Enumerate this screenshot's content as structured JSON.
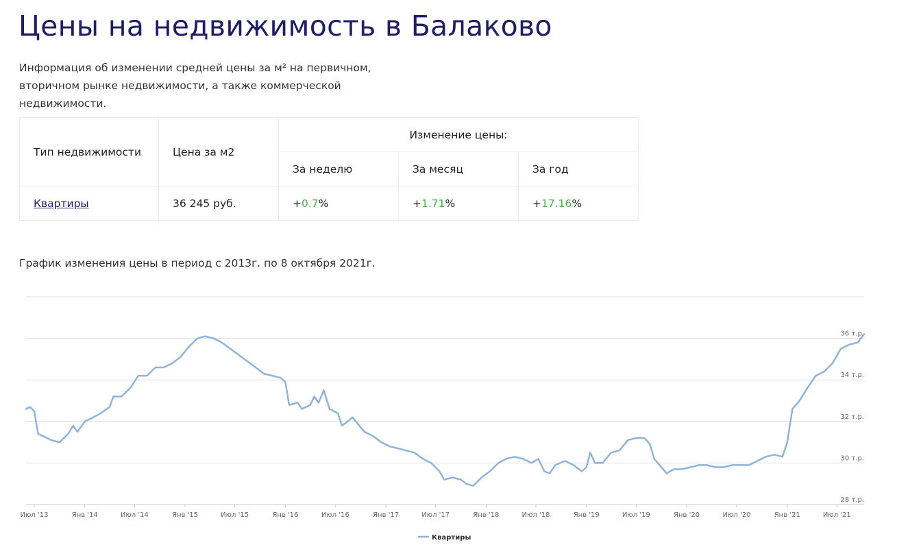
{
  "page": {
    "title": "Цены на недвижимость в Балаково",
    "intro": "Информация об изменении средней цены за м² на первичном, вторичном рынке недвижимости, а также коммерческой недвижимости.",
    "chart_caption": "График изменения цены в период с 2013г. по 8 октября 2021г."
  },
  "table": {
    "col_type": "Тип недвижимости",
    "col_price": "Цена за м2",
    "col_change": "Изменение цены:",
    "col_week": "За неделю",
    "col_month": "За месяц",
    "col_year": "За год",
    "rows": [
      {
        "type": "Квартиры",
        "price": "36 245 руб.",
        "week_sign": "+",
        "week_value": "0.7",
        "week_pct": "%",
        "month_sign": "+",
        "month_value": "1.71",
        "month_pct": "%",
        "year_sign": "+",
        "year_value": "17.16",
        "year_pct": "%"
      }
    ]
  },
  "colors": {
    "title": "#1f1d63",
    "positive": "#4cae4c",
    "series": "#8fb3d9",
    "grid": "#e0e0e0"
  },
  "chart_data": {
    "type": "line",
    "x_tick_labels": [
      "Июл '13",
      "Янв '14",
      "Июл '14",
      "Янв '15",
      "Июл '15",
      "Янв '16",
      "Июл '16",
      "Янв '17",
      "Июл '17",
      "Янв '18",
      "Июл '18",
      "Янв '19",
      "Июл '19",
      "Янв '20",
      "Июл '20",
      "Янв '21",
      "Июл '21"
    ],
    "y_ticks": [
      28,
      30,
      32,
      34,
      36
    ],
    "y_tick_labels": [
      "28 т.р.",
      "30 т.р.",
      "32 т.р.",
      "34 т.р.",
      "36 т.р."
    ],
    "ylim": [
      28,
      38
    ],
    "grid": true,
    "legend_position": "bottom-center",
    "series": [
      {
        "name": "Квартиры",
        "points": [
          [
            "2013-06-01",
            32.6
          ],
          [
            "2013-06-15",
            32.7
          ],
          [
            "2013-07-01",
            32.5
          ],
          [
            "2013-07-15",
            31.4
          ],
          [
            "2013-08-01",
            31.3
          ],
          [
            "2013-09-01",
            31.1
          ],
          [
            "2013-10-01",
            31.0
          ],
          [
            "2013-11-01",
            31.4
          ],
          [
            "2013-11-20",
            31.8
          ],
          [
            "2013-12-05",
            31.5
          ],
          [
            "2014-01-01",
            32.0
          ],
          [
            "2014-02-01",
            32.2
          ],
          [
            "2014-03-01",
            32.4
          ],
          [
            "2014-04-01",
            32.7
          ],
          [
            "2014-04-15",
            33.2
          ],
          [
            "2014-05-15",
            33.2
          ],
          [
            "2014-06-15",
            33.6
          ],
          [
            "2014-07-15",
            34.2
          ],
          [
            "2014-08-15",
            34.2
          ],
          [
            "2014-09-15",
            34.6
          ],
          [
            "2014-10-15",
            34.6
          ],
          [
            "2014-11-15",
            34.8
          ],
          [
            "2014-12-15",
            35.1
          ],
          [
            "2015-01-15",
            35.6
          ],
          [
            "2015-02-15",
            36.0
          ],
          [
            "2015-03-15",
            36.1
          ],
          [
            "2015-04-15",
            36.0
          ],
          [
            "2015-05-15",
            35.8
          ],
          [
            "2015-06-15",
            35.5
          ],
          [
            "2015-07-15",
            35.2
          ],
          [
            "2015-08-15",
            34.9
          ],
          [
            "2015-09-15",
            34.6
          ],
          [
            "2015-10-15",
            34.3
          ],
          [
            "2015-11-15",
            34.2
          ],
          [
            "2015-12-15",
            34.1
          ],
          [
            "2016-01-01",
            33.9
          ],
          [
            "2016-01-15",
            32.8
          ],
          [
            "2016-02-15",
            32.9
          ],
          [
            "2016-03-01",
            32.6
          ],
          [
            "2016-04-01",
            32.8
          ],
          [
            "2016-04-15",
            33.2
          ],
          [
            "2016-05-01",
            32.9
          ],
          [
            "2016-05-20",
            33.5
          ],
          [
            "2016-06-10",
            32.6
          ],
          [
            "2016-07-10",
            32.4
          ],
          [
            "2016-07-25",
            31.8
          ],
          [
            "2016-08-15",
            32.0
          ],
          [
            "2016-09-01",
            32.2
          ],
          [
            "2016-09-20",
            31.9
          ],
          [
            "2016-10-15",
            31.5
          ],
          [
            "2016-11-15",
            31.3
          ],
          [
            "2016-12-15",
            31.0
          ],
          [
            "2017-01-15",
            30.8
          ],
          [
            "2017-02-15",
            30.7
          ],
          [
            "2017-03-15",
            30.6
          ],
          [
            "2017-04-15",
            30.5
          ],
          [
            "2017-05-15",
            30.2
          ],
          [
            "2017-06-15",
            30.0
          ],
          [
            "2017-07-15",
            29.6
          ],
          [
            "2017-08-01",
            29.2
          ],
          [
            "2017-09-01",
            29.3
          ],
          [
            "2017-10-01",
            29.2
          ],
          [
            "2017-10-20",
            29.0
          ],
          [
            "2017-11-15",
            28.9
          ],
          [
            "2017-12-15",
            29.3
          ],
          [
            "2018-01-15",
            29.6
          ],
          [
            "2018-02-15",
            30.0
          ],
          [
            "2018-03-15",
            30.2
          ],
          [
            "2018-04-15",
            30.3
          ],
          [
            "2018-05-15",
            30.2
          ],
          [
            "2018-06-15",
            30.0
          ],
          [
            "2018-07-10",
            30.2
          ],
          [
            "2018-08-01",
            29.6
          ],
          [
            "2018-08-20",
            29.5
          ],
          [
            "2018-09-10",
            29.9
          ],
          [
            "2018-10-15",
            30.1
          ],
          [
            "2018-11-15",
            29.9
          ],
          [
            "2018-12-15",
            29.6
          ],
          [
            "2019-01-01",
            29.8
          ],
          [
            "2019-01-15",
            30.5
          ],
          [
            "2019-02-01",
            30.0
          ],
          [
            "2019-03-01",
            30.0
          ],
          [
            "2019-04-01",
            30.5
          ],
          [
            "2019-05-01",
            30.6
          ],
          [
            "2019-06-01",
            31.1
          ],
          [
            "2019-07-01",
            31.2
          ],
          [
            "2019-08-01",
            31.2
          ],
          [
            "2019-08-20",
            30.9
          ],
          [
            "2019-09-05",
            30.2
          ],
          [
            "2019-10-01",
            29.8
          ],
          [
            "2019-10-20",
            29.5
          ],
          [
            "2019-11-15",
            29.7
          ],
          [
            "2019-12-15",
            29.7
          ],
          [
            "2020-01-15",
            29.8
          ],
          [
            "2020-02-15",
            29.9
          ],
          [
            "2020-03-15",
            29.9
          ],
          [
            "2020-04-15",
            29.8
          ],
          [
            "2020-05-15",
            29.8
          ],
          [
            "2020-06-15",
            29.9
          ],
          [
            "2020-07-15",
            29.9
          ],
          [
            "2020-08-15",
            29.9
          ],
          [
            "2020-09-15",
            30.1
          ],
          [
            "2020-10-15",
            30.3
          ],
          [
            "2020-11-15",
            30.4
          ],
          [
            "2020-12-15",
            30.3
          ],
          [
            "2021-01-01",
            31.0
          ],
          [
            "2021-01-20",
            32.6
          ],
          [
            "2021-02-15",
            33.0
          ],
          [
            "2021-03-15",
            33.6
          ],
          [
            "2021-04-15",
            34.2
          ],
          [
            "2021-05-15",
            34.4
          ],
          [
            "2021-06-15",
            34.8
          ],
          [
            "2021-07-15",
            35.5
          ],
          [
            "2021-08-15",
            35.7
          ],
          [
            "2021-09-15",
            35.8
          ],
          [
            "2021-10-08",
            36.2
          ]
        ]
      }
    ]
  }
}
